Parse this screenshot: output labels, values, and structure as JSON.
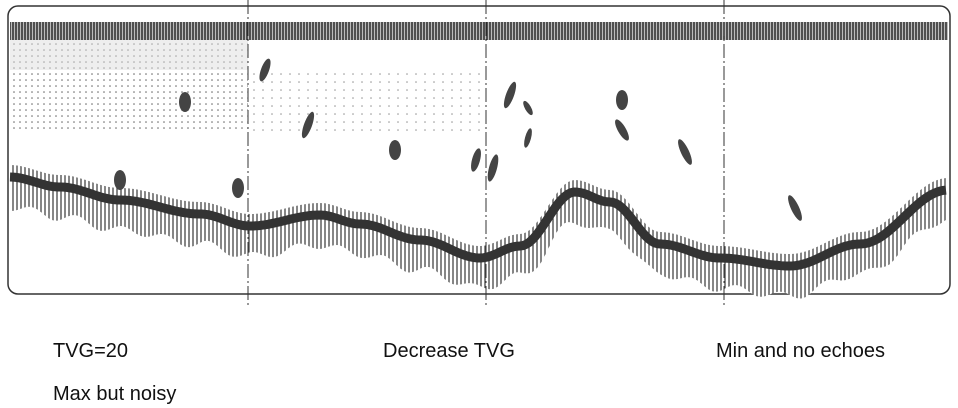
{
  "captions": {
    "left": "TVG=20",
    "left_sub": "Max but noisy",
    "middle": "Decrease TVG",
    "right": "Min and no echoes"
  }
}
